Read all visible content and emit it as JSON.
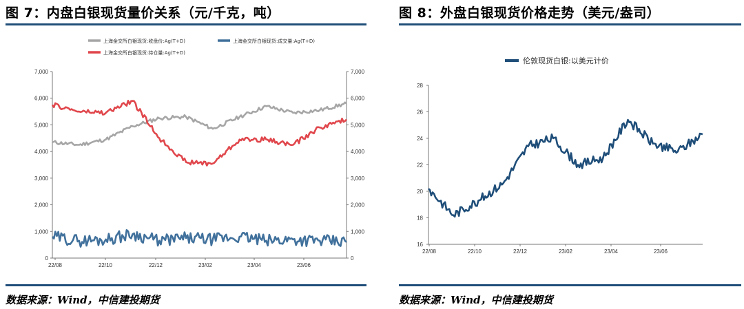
{
  "left": {
    "title": "图 7：内盘白银现货量价关系（元/千克，吨）",
    "source": "数据来源：Wind，中信建投期货"
  },
  "right": {
    "title": "图 8：外盘白银现货价格走势（美元/盎司）",
    "source": "数据来源：Wind，中信建投期货"
  },
  "colors": {
    "accent_rule": "#1f4e79",
    "price_series": "#a6a6a6",
    "volume_series": "#41719c",
    "open_interest_series": "#e0474c",
    "london_silver": "#1f4e79"
  },
  "chart_data": [
    {
      "type": "line",
      "title": "",
      "xlabel": "",
      "ylabel": "",
      "x_ticks": [
        "22/08",
        "22/10",
        "22/12",
        "23/02",
        "23/04",
        "23/06"
      ],
      "ylim_left": [
        0,
        7000
      ],
      "ylim_right": [
        0,
        7000
      ],
      "y_ticks_left": [
        "0",
        "1,000",
        "2,000",
        "3,000",
        "4,000",
        "5,000",
        "6,000",
        "7,000"
      ],
      "y_ticks_right": [
        "0",
        "1,000",
        "2,000",
        "3,000",
        "4,000",
        "5,000",
        "6,000",
        "7,000"
      ],
      "grid": false,
      "legend_position": "top",
      "x_points": [
        "22/08",
        "22/09",
        "22/10",
        "22/11",
        "22/12",
        "23/01",
        "23/02",
        "23/03",
        "23/04",
        "23/05",
        "23/06",
        "23/07"
      ],
      "series": [
        {
          "name": "上海金交所白银现货:收盘价:Ag(T+D)",
          "axis": "right",
          "values": [
            4350,
            4250,
            4450,
            4950,
            5250,
            5300,
            4850,
            5300,
            5700,
            5450,
            5550,
            5800
          ]
        },
        {
          "name": "上海金交所白银现货:成交量:Ag(T+D)",
          "axis": "left",
          "values": [
            800,
            650,
            700,
            900,
            650,
            750,
            700,
            800,
            650,
            700,
            650,
            600
          ]
        },
        {
          "name": "上海金交所白银现货:持仓量:Ag(T+D)",
          "axis": "right",
          "values": [
            5750,
            5500,
            5450,
            5900,
            4500,
            3600,
            3550,
            4450,
            4450,
            4250,
            4900,
            5200
          ]
        }
      ]
    },
    {
      "type": "line",
      "title": "",
      "xlabel": "",
      "ylabel": "",
      "x_ticks": [
        "22/08",
        "22/10",
        "22/12",
        "23/02",
        "23/04",
        "23/06"
      ],
      "ylim": [
        16,
        28
      ],
      "y_ticks": [
        "16",
        "18",
        "20",
        "22",
        "24",
        "26",
        "28"
      ],
      "grid": false,
      "legend_position": "top",
      "x_points": [
        "22/08",
        "22/09",
        "22/10",
        "22/11",
        "22/12",
        "23/01",
        "23/02",
        "23/03",
        "23/04",
        "23/05",
        "23/06",
        "23/07"
      ],
      "series": [
        {
          "name": "伦敦现货白银:以美元计价",
          "values": [
            20.2,
            18.2,
            19.3,
            20.6,
            23.4,
            24.0,
            22.0,
            22.5,
            25.4,
            23.6,
            23.0,
            24.3
          ]
        }
      ]
    }
  ]
}
